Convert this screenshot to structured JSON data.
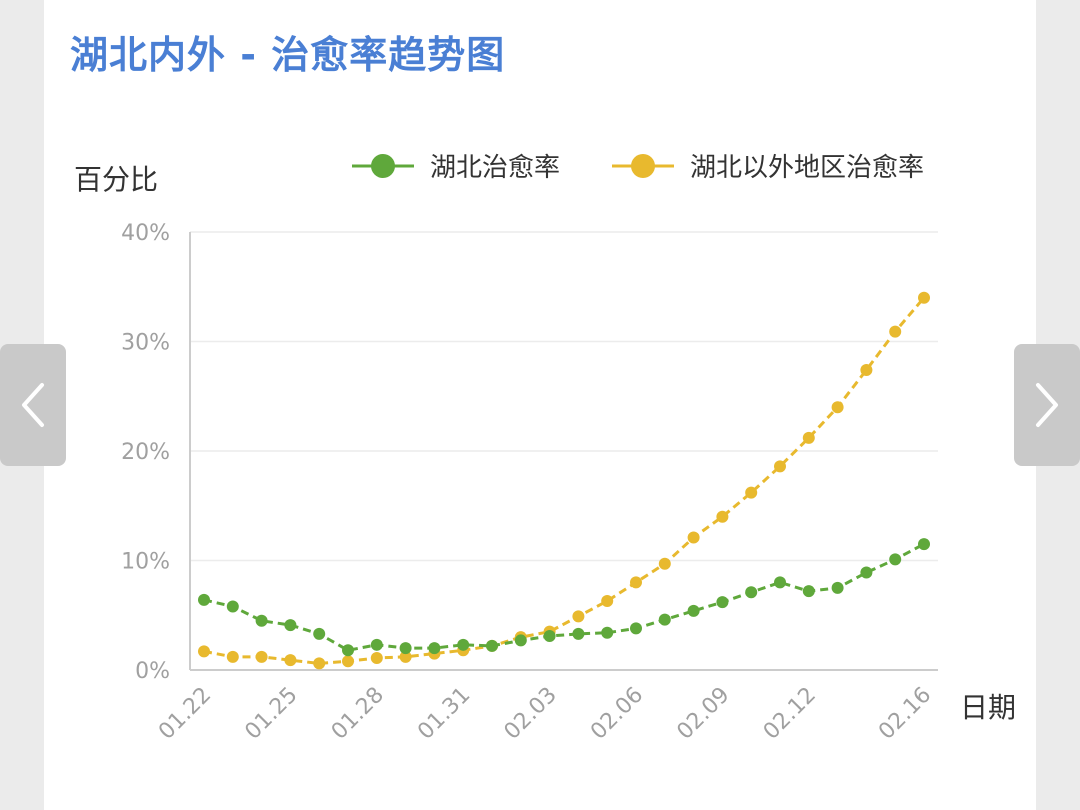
{
  "title": "湖北内外 - 治愈率趋势图",
  "nav": {
    "prev_icon": "chevron-left-icon",
    "next_icon": "chevron-right-icon"
  },
  "chart_data": {
    "type": "line",
    "ylabel": "百分比",
    "xlabel": "日期",
    "ylim": [
      0,
      40
    ],
    "yticks": [
      "0%",
      "10%",
      "20%",
      "30%",
      "40%"
    ],
    "grid": true,
    "legend_position": "top-right",
    "xtick_labels": [
      "01.22",
      "01.25",
      "01.28",
      "01.31",
      "02.03",
      "02.06",
      "02.09",
      "02.12",
      "02.16"
    ],
    "x": [
      "01.22",
      "01.23",
      "01.24",
      "01.25",
      "01.26",
      "01.27",
      "01.28",
      "01.29",
      "01.30",
      "01.31",
      "02.01",
      "02.02",
      "02.03",
      "02.04",
      "02.05",
      "02.06",
      "02.07",
      "02.08",
      "02.09",
      "02.10",
      "02.11",
      "02.12",
      "02.13",
      "02.14",
      "02.15",
      "02.16"
    ],
    "series": [
      {
        "name": "湖北治愈率",
        "color": "#5fa83b",
        "values": [
          6.4,
          5.8,
          4.5,
          4.1,
          3.3,
          1.8,
          2.3,
          2.0,
          2.0,
          2.3,
          2.2,
          2.7,
          3.1,
          3.3,
          3.4,
          3.8,
          4.6,
          5.4,
          6.2,
          7.1,
          8.0,
          7.2,
          7.5,
          8.9,
          10.1,
          11.5
        ]
      },
      {
        "name": "湖北以外地区治愈率",
        "color": "#e8b92e",
        "values": [
          1.7,
          1.2,
          1.2,
          0.9,
          0.6,
          0.8,
          1.1,
          1.2,
          1.5,
          1.8,
          2.2,
          3.0,
          3.5,
          4.9,
          6.3,
          8.0,
          9.7,
          12.1,
          14.0,
          16.2,
          18.6,
          21.2,
          24.0,
          27.4,
          30.9,
          34.0
        ]
      }
    ]
  }
}
